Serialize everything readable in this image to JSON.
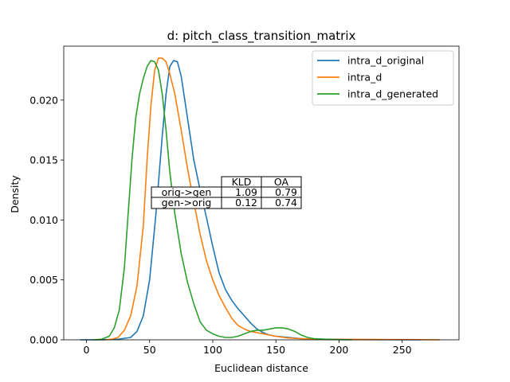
{
  "chart_data": {
    "type": "line",
    "title": "d: pitch_class_transition_matrix",
    "xlabel": "Euclidean distance",
    "ylabel": "Density",
    "xlim": [
      -18,
      295
    ],
    "ylim": [
      0,
      0.0245
    ],
    "xticks": [
      0,
      50,
      100,
      150,
      200,
      250
    ],
    "yticks": [
      0.0,
      0.005,
      0.01,
      0.015,
      0.02
    ],
    "ytick_labels": [
      "0.000",
      "0.005",
      "0.010",
      "0.015",
      "0.020"
    ],
    "grid": false,
    "legend_position": "top-right",
    "series": [
      {
        "name": "intra_d_original",
        "color": "#1f77b4",
        "points": [
          [
            -5,
            0
          ],
          [
            10,
            0
          ],
          [
            25,
            5e-05
          ],
          [
            35,
            0.0002
          ],
          [
            40,
            0.0007
          ],
          [
            45,
            0.002
          ],
          [
            50,
            0.005
          ],
          [
            55,
            0.0105
          ],
          [
            60,
            0.017
          ],
          [
            63,
            0.0205
          ],
          [
            66,
            0.0228
          ],
          [
            69,
            0.0233
          ],
          [
            72,
            0.0232
          ],
          [
            75,
            0.022
          ],
          [
            80,
            0.0185
          ],
          [
            85,
            0.015
          ],
          [
            90,
            0.0125
          ],
          [
            95,
            0.0102
          ],
          [
            100,
            0.0078
          ],
          [
            105,
            0.0056
          ],
          [
            110,
            0.0042
          ],
          [
            115,
            0.0033
          ],
          [
            120,
            0.0026
          ],
          [
            125,
            0.002
          ],
          [
            130,
            0.0014
          ],
          [
            135,
            0.0009
          ],
          [
            140,
            0.0006
          ],
          [
            145,
            0.0004
          ],
          [
            150,
            0.0003
          ],
          [
            160,
            0.0002
          ],
          [
            170,
            0.0001
          ],
          [
            180,
            5e-05
          ],
          [
            200,
            3e-05
          ],
          [
            230,
            1e-05
          ],
          [
            265,
            0
          ]
        ]
      },
      {
        "name": "intra_d",
        "color": "#ff7f0e",
        "points": [
          [
            15,
            0
          ],
          [
            20,
            5e-05
          ],
          [
            25,
            0.0002
          ],
          [
            30,
            0.0008
          ],
          [
            35,
            0.002
          ],
          [
            40,
            0.0045
          ],
          [
            45,
            0.0095
          ],
          [
            48,
            0.015
          ],
          [
            51,
            0.0195
          ],
          [
            54,
            0.0225
          ],
          [
            57,
            0.0235
          ],
          [
            60,
            0.0235
          ],
          [
            63,
            0.0232
          ],
          [
            66,
            0.0222
          ],
          [
            70,
            0.0205
          ],
          [
            75,
            0.0175
          ],
          [
            80,
            0.0143
          ],
          [
            85,
            0.0115
          ],
          [
            90,
            0.0088
          ],
          [
            95,
            0.0066
          ],
          [
            100,
            0.005
          ],
          [
            105,
            0.0037
          ],
          [
            110,
            0.0027
          ],
          [
            115,
            0.0018
          ],
          [
            120,
            0.0012
          ],
          [
            125,
            0.0009
          ],
          [
            130,
            0.0007
          ],
          [
            135,
            0.0006
          ],
          [
            140,
            0.0005
          ],
          [
            145,
            0.0004
          ],
          [
            150,
            0.0003
          ],
          [
            160,
            0.00015
          ],
          [
            170,
            0.0001
          ],
          [
            180,
            5e-05
          ],
          [
            200,
            4e-05
          ],
          [
            230,
            3e-05
          ],
          [
            260,
            2e-05
          ],
          [
            280,
            0
          ]
        ]
      },
      {
        "name": "intra_d_generated",
        "color": "#2ca02c",
        "points": [
          [
            5,
            0
          ],
          [
            12,
            5e-05
          ],
          [
            18,
            0.0003
          ],
          [
            22,
            0.001
          ],
          [
            26,
            0.0025
          ],
          [
            30,
            0.006
          ],
          [
            33,
            0.0105
          ],
          [
            36,
            0.015
          ],
          [
            39,
            0.0185
          ],
          [
            42,
            0.0205
          ],
          [
            45,
            0.0218
          ],
          [
            48,
            0.0228
          ],
          [
            51,
            0.0233
          ],
          [
            54,
            0.0232
          ],
          [
            57,
            0.0225
          ],
          [
            60,
            0.0205
          ],
          [
            63,
            0.0175
          ],
          [
            66,
            0.014
          ],
          [
            70,
            0.0105
          ],
          [
            75,
            0.0072
          ],
          [
            80,
            0.0048
          ],
          [
            85,
            0.003
          ],
          [
            90,
            0.0015
          ],
          [
            95,
            0.0008
          ],
          [
            100,
            0.0005
          ],
          [
            105,
            0.0003
          ],
          [
            110,
            0.0002
          ],
          [
            115,
            0.0002
          ],
          [
            120,
            0.0003
          ],
          [
            125,
            0.0005
          ],
          [
            130,
            0.0007
          ],
          [
            135,
            0.0008
          ],
          [
            140,
            0.0008
          ],
          [
            145,
            0.0009
          ],
          [
            150,
            0.001
          ],
          [
            155,
            0.001
          ],
          [
            160,
            0.0009
          ],
          [
            165,
            0.0007
          ],
          [
            170,
            0.0004
          ],
          [
            175,
            0.0002
          ],
          [
            180,
            0.0001
          ],
          [
            190,
            5e-05
          ],
          [
            200,
            2e-05
          ],
          [
            210,
            0
          ]
        ]
      }
    ],
    "table": {
      "columns": [
        "",
        "KLD",
        "OA"
      ],
      "rows": [
        [
          "orig->gen",
          "1.09",
          "0.79"
        ],
        [
          "gen->orig",
          "0.12",
          "0.74"
        ]
      ]
    }
  }
}
